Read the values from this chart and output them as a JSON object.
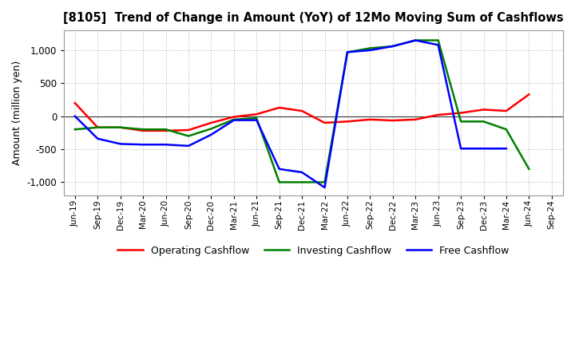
{
  "title": "[8105]  Trend of Change in Amount (YoY) of 12Mo Moving Sum of Cashflows",
  "ylabel": "Amount (million yen)",
  "x_labels": [
    "Jun-19",
    "Sep-19",
    "Dec-19",
    "Mar-20",
    "Jun-20",
    "Sep-20",
    "Dec-20",
    "Mar-21",
    "Jun-21",
    "Sep-21",
    "Dec-21",
    "Mar-22",
    "Jun-22",
    "Sep-22",
    "Dec-22",
    "Mar-23",
    "Jun-23",
    "Sep-23",
    "Dec-23",
    "Mar-24",
    "Jun-24",
    "Sep-24"
  ],
  "operating": [
    200,
    -170,
    -170,
    -220,
    -220,
    -210,
    -100,
    -10,
    30,
    130,
    80,
    -100,
    -80,
    -50,
    -65,
    -50,
    20,
    50,
    100,
    80,
    330,
    null
  ],
  "investing": [
    -200,
    -170,
    -170,
    -200,
    -200,
    -300,
    -190,
    -50,
    -30,
    -1000,
    -1000,
    -1000,
    970,
    1030,
    1060,
    1150,
    1150,
    -80,
    -80,
    -200,
    -800,
    null
  ],
  "free": [
    0,
    -340,
    -420,
    -430,
    -430,
    -450,
    -280,
    -60,
    -60,
    -800,
    -850,
    -1080,
    970,
    1000,
    1060,
    1150,
    1080,
    -490,
    -490,
    -490,
    null,
    null
  ],
  "ylim": [
    -1200,
    1300
  ],
  "yticks": [
    -1000,
    -500,
    0,
    500,
    1000
  ],
  "colors": {
    "operating": "#ff0000",
    "investing": "#008000",
    "free": "#0000ff"
  },
  "legend": [
    "Operating Cashflow",
    "Investing Cashflow",
    "Free Cashflow"
  ],
  "background_color": "#ffffff",
  "grid_color": "#aaaaaa"
}
